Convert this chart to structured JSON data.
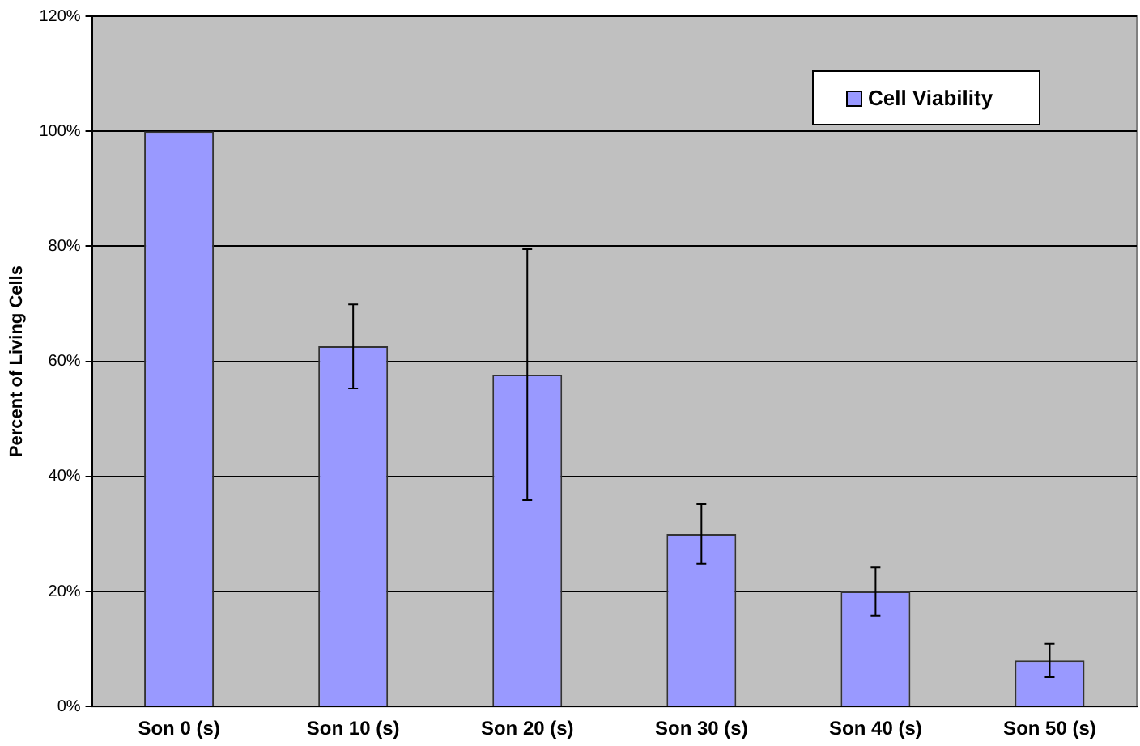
{
  "chart_data": {
    "type": "bar",
    "ylabel": "Percent of Living Cells",
    "categories": [
      "Son 0 (s)",
      "Son 10 (s)",
      "Son 20 (s)",
      "Son 30 (s)",
      "Son 40 (s)",
      "Son 50 (s)"
    ],
    "series": [
      {
        "name": "Cell Viability",
        "color": "#9999ff",
        "values": [
          100,
          62.6,
          57.7,
          30,
          20,
          8
        ],
        "errors": [
          null,
          7.3,
          21.8,
          5.2,
          4.2,
          2.9
        ]
      }
    ],
    "ylim": [
      0,
      120
    ],
    "yticks": [
      {
        "value": 0,
        "label": "0%"
      },
      {
        "value": 20,
        "label": "20%"
      },
      {
        "value": 40,
        "label": "40%"
      },
      {
        "value": 60,
        "label": "60%"
      },
      {
        "value": 80,
        "label": "80%"
      },
      {
        "value": 100,
        "label": "100%"
      },
      {
        "value": 120,
        "label": "120%"
      }
    ],
    "grid": "y",
    "legend": "top right"
  }
}
